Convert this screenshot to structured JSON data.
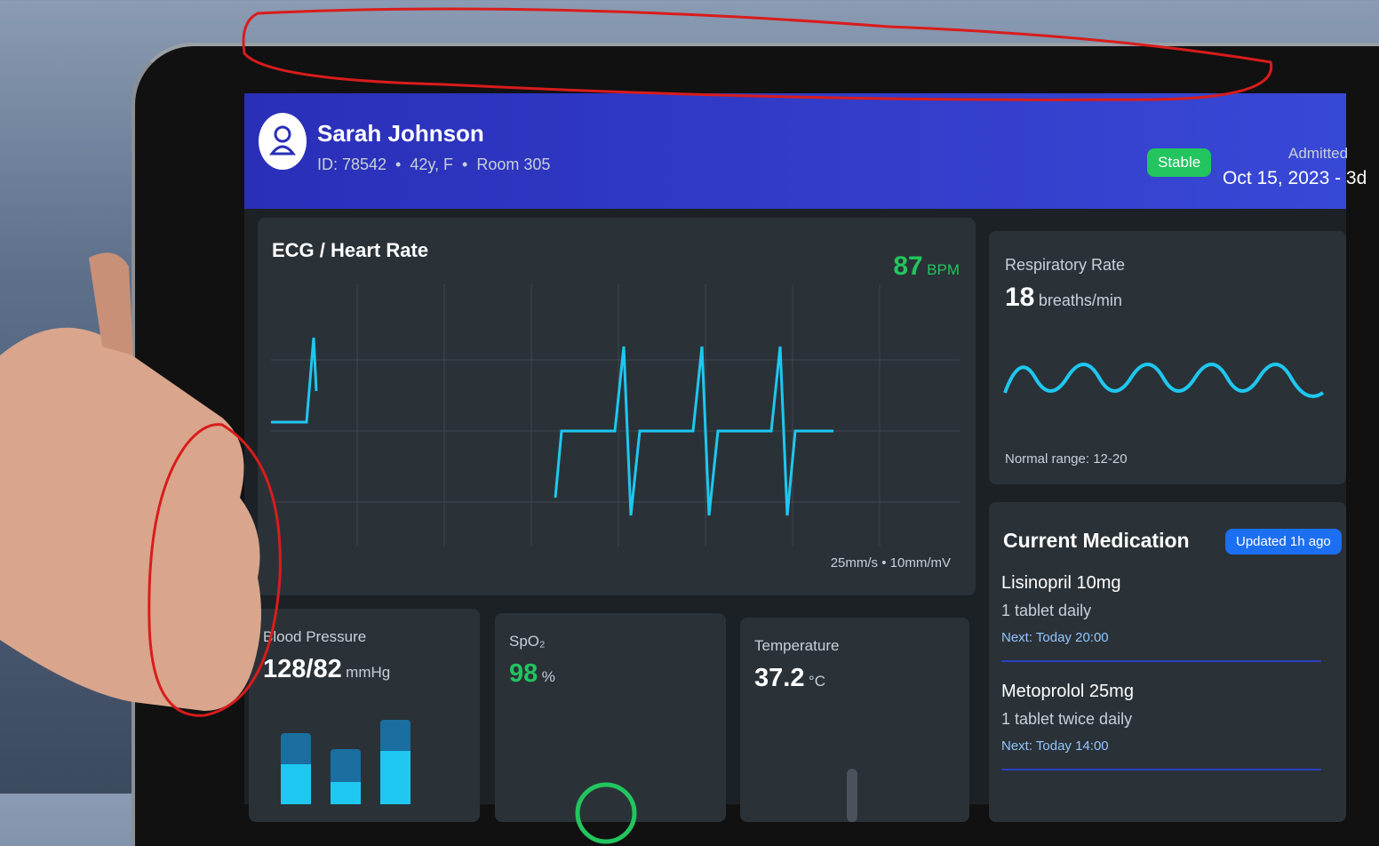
{
  "header": {
    "name": "Sarah Johnson",
    "details": "ID: 78542  •  42y, F  •  Room 305",
    "status": "Stable",
    "admitted_label": "Admitted",
    "admitted_date": "Oct 15, 2023 - 3d"
  },
  "ecg": {
    "title": "ECG / Heart Rate",
    "value": "87",
    "unit": "BPM",
    "scale": "25mm/s • 10mm/mV"
  },
  "respiratory": {
    "title": "Respiratory Rate",
    "value": "18",
    "unit": "breaths/min",
    "range": "Normal range: 12-20"
  },
  "medication": {
    "title": "Current Medication",
    "badge": "Updated 1h ago",
    "items": [
      {
        "name": "Lisinopril 10mg",
        "dose": "1 tablet daily",
        "next": "Next: Today 20:00"
      },
      {
        "name": "Metoprolol 25mg",
        "dose": "1 tablet twice daily",
        "next": "Next: Today 14:00"
      }
    ]
  },
  "blood_pressure": {
    "title": "Blood Pressure",
    "value": "128/82",
    "unit": "mmHg"
  },
  "spo2": {
    "title": "SpO₂",
    "value": "98",
    "unit": "%"
  },
  "temperature": {
    "title": "Temperature",
    "value": "37.2",
    "unit": "°C"
  }
}
